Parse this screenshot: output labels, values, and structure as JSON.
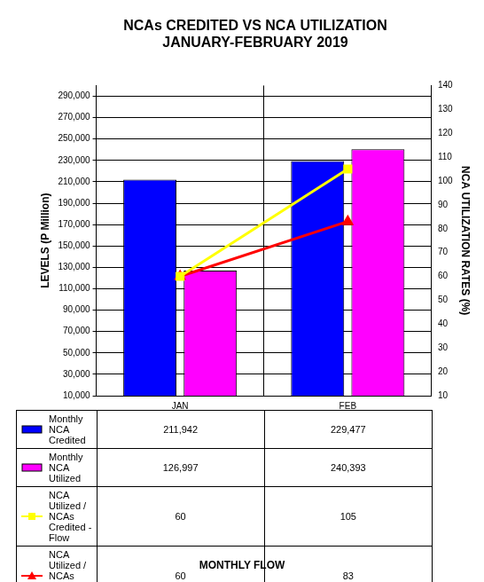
{
  "chart_data": {
    "type": "bar",
    "title": [
      "NCAs CREDITED VS NCA UTILIZATION",
      "JANUARY-FEBRUARY 2019"
    ],
    "x_label": "MONTHLY FLOW",
    "y_label": "LEVELS (P Million)",
    "y2_label": "NCA UTILIZATION RATES (%)",
    "categories": [
      "JAN",
      "FEB"
    ],
    "series": [
      {
        "name": "Monthly NCA Credited",
        "type": "bar",
        "color": "#0000ff",
        "values": [
          211942,
          229477
        ],
        "value_labels": [
          "211,942",
          "229,477"
        ]
      },
      {
        "name": "Monthly NCA Utilized",
        "type": "bar",
        "color": "#ff00ff",
        "values": [
          126997,
          240393
        ],
        "value_labels": [
          "126,997",
          "240,393"
        ]
      },
      {
        "name": "NCA Utilized / NCAs Credited - Flow",
        "type": "line",
        "color": "#ffff00",
        "marker": "square",
        "axis": "y2",
        "values": [
          60,
          105
        ]
      },
      {
        "name": "NCA Utilized / NCAs Credited - Cumulative",
        "type": "line",
        "color": "#ff0000",
        "marker": "triangle",
        "axis": "y2",
        "values": [
          60,
          83
        ]
      }
    ],
    "ylim": [
      10000,
      300000
    ],
    "yticks": [
      {
        "value": 10000,
        "label": "10,000"
      },
      {
        "value": 30000,
        "label": "30,000"
      },
      {
        "value": 50000,
        "label": "50,000"
      },
      {
        "value": 70000,
        "label": "70,000"
      },
      {
        "value": 90000,
        "label": "90,000"
      },
      {
        "value": 110000,
        "label": "110,000"
      },
      {
        "value": 130000,
        "label": "130,000"
      },
      {
        "value": 150000,
        "label": "150,000"
      },
      {
        "value": 170000,
        "label": "170,000"
      },
      {
        "value": 190000,
        "label": "190,000"
      },
      {
        "value": 210000,
        "label": "210,000"
      },
      {
        "value": 230000,
        "label": "230,000"
      },
      {
        "value": 250000,
        "label": "250,000"
      },
      {
        "value": 270000,
        "label": "270,000"
      },
      {
        "value": 290000,
        "label": "290,000"
      }
    ],
    "y2lim": [
      10,
      140
    ],
    "y2ticks": [
      10,
      20,
      30,
      40,
      50,
      60,
      70,
      80,
      90,
      100,
      110,
      120,
      130,
      140
    ],
    "grid": true
  }
}
